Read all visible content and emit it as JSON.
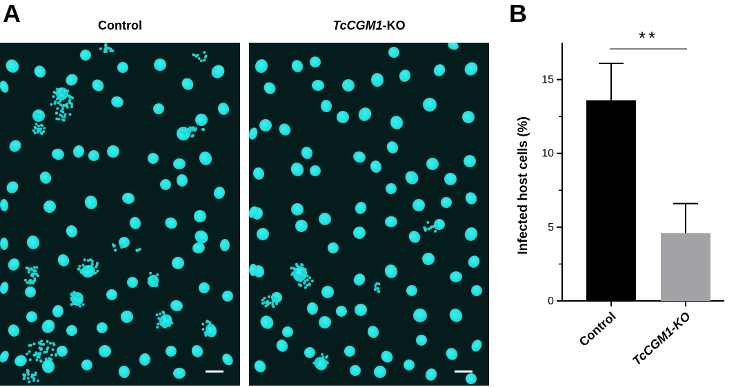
{
  "panels": {
    "a_label": "A",
    "b_label": "B"
  },
  "images": [
    {
      "title_plain": "Control",
      "title_italic": "",
      "title_suffix": ""
    },
    {
      "title_plain": "",
      "title_italic": "TcCGM1",
      "title_suffix": "-KO"
    }
  ],
  "colors": {
    "nucleus": "#17d8d8",
    "background": "#041c1b",
    "bar_control": "#000000",
    "bar_ko": "#a3a3a7"
  },
  "chart_data": {
    "type": "bar",
    "ylabel": "Infected host cells (%)",
    "ylim": [
      0,
      17.5
    ],
    "yticks": [
      0,
      5,
      10,
      15
    ],
    "categories": [
      {
        "italic": "",
        "plain": "Control"
      },
      {
        "italic": "TcCGM1",
        "plain": "-KO"
      }
    ],
    "values": [
      13.6,
      4.6
    ],
    "errors": [
      2.5,
      2.0
    ],
    "significance": "**"
  }
}
